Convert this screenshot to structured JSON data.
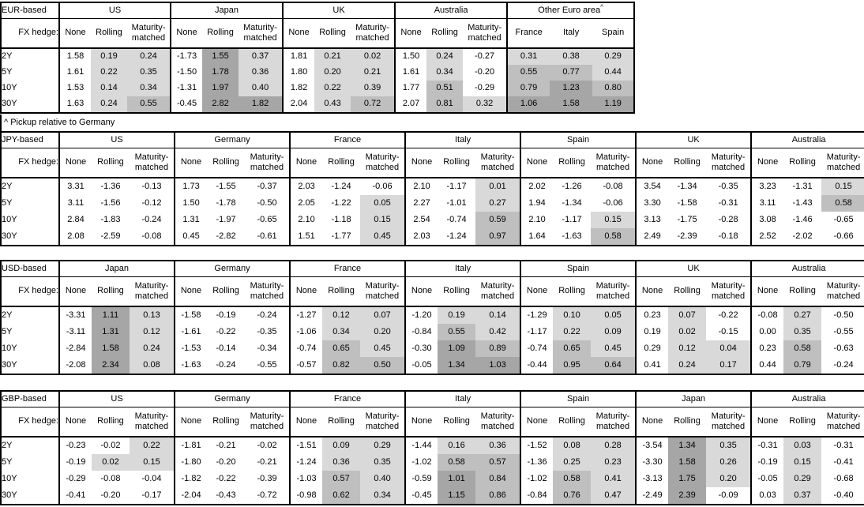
{
  "footnote": "^ Pickup relative to Germany",
  "fx_hedge_label": "FX hedge:",
  "tenors": [
    "2Y",
    "5Y",
    "10Y",
    "30Y"
  ],
  "hedge_columns": [
    "None",
    "Rolling",
    "Maturity-matched"
  ],
  "shading": {
    "negative": "#ffffff",
    "low": "#d9d9d9",
    "mid": "#bfbfbf",
    "high": "#a6a6a6",
    "thresholds": [
      0,
      0.5,
      1
    ]
  },
  "tables": [
    {
      "base": "EUR-based",
      "groups": [
        {
          "name": "US",
          "columns": [
            "None",
            "Rolling",
            "Maturity-matched"
          ],
          "shaded_columns": [
            1,
            2
          ],
          "values": [
            [
              "1.58",
              "0.19",
              "0.24"
            ],
            [
              "1.61",
              "0.22",
              "0.35"
            ],
            [
              "1.53",
              "0.14",
              "0.34"
            ],
            [
              "1.63",
              "0.24",
              "0.55"
            ]
          ]
        },
        {
          "name": "Japan",
          "columns": [
            "None",
            "Rolling",
            "Maturity-matched"
          ],
          "shaded_columns": [
            1,
            2
          ],
          "values": [
            [
              "-1.73",
              "1.55",
              "0.37"
            ],
            [
              "-1.50",
              "1.78",
              "0.36"
            ],
            [
              "-1.31",
              "1.97",
              "0.40"
            ],
            [
              "-0.45",
              "2.82",
              "1.82"
            ]
          ]
        },
        {
          "name": "UK",
          "columns": [
            "None",
            "Rolling",
            "Maturity-matched"
          ],
          "shaded_columns": [
            1,
            2
          ],
          "values": [
            [
              "1.81",
              "0.21",
              "0.02"
            ],
            [
              "1.80",
              "0.20",
              "0.21"
            ],
            [
              "1.82",
              "0.22",
              "0.39"
            ],
            [
              "2.04",
              "0.43",
              "0.72"
            ]
          ]
        },
        {
          "name": "Australia",
          "columns": [
            "None",
            "Rolling",
            "Maturity-matched"
          ],
          "shaded_columns": [
            1,
            2
          ],
          "values": [
            [
              "1.50",
              "0.24",
              "-0.27"
            ],
            [
              "1.61",
              "0.34",
              "-0.20"
            ],
            [
              "1.77",
              "0.51",
              "-0.29"
            ],
            [
              "2.07",
              "0.81",
              "0.32"
            ]
          ]
        },
        {
          "name": "Other Euro area",
          "superscript": "^",
          "columns": [
            "France",
            "Italy",
            "Spain"
          ],
          "shaded_columns": [
            0,
            1,
            2
          ],
          "values": [
            [
              "0.31",
              "0.38",
              "0.29"
            ],
            [
              "0.55",
              "0.77",
              "0.44"
            ],
            [
              "0.79",
              "1.23",
              "0.80"
            ],
            [
              "1.06",
              "1.58",
              "1.19"
            ]
          ]
        }
      ]
    },
    {
      "base": "JPY-based",
      "groups": [
        {
          "name": "US",
          "columns": [
            "None",
            "Rolling",
            "Maturity-matched"
          ],
          "shaded_columns": [
            1,
            2
          ],
          "values": [
            [
              "3.31",
              "-1.36",
              "-0.13"
            ],
            [
              "3.11",
              "-1.56",
              "-0.12"
            ],
            [
              "2.84",
              "-1.83",
              "-0.24"
            ],
            [
              "2.08",
              "-2.59",
              "-0.08"
            ]
          ]
        },
        {
          "name": "Germany",
          "columns": [
            "None",
            "Rolling",
            "Maturity-matched"
          ],
          "shaded_columns": [
            1,
            2
          ],
          "values": [
            [
              "1.73",
              "-1.55",
              "-0.37"
            ],
            [
              "1.50",
              "-1.78",
              "-0.50"
            ],
            [
              "1.31",
              "-1.97",
              "-0.65"
            ],
            [
              "0.45",
              "-2.82",
              "-0.61"
            ]
          ]
        },
        {
          "name": "France",
          "columns": [
            "None",
            "Rolling",
            "Maturity-matched"
          ],
          "shaded_columns": [
            1,
            2
          ],
          "values": [
            [
              "2.03",
              "-1.24",
              "-0.06"
            ],
            [
              "2.05",
              "-1.22",
              "0.05"
            ],
            [
              "2.10",
              "-1.18",
              "0.15"
            ],
            [
              "1.51",
              "-1.77",
              "0.45"
            ]
          ]
        },
        {
          "name": "Italy",
          "columns": [
            "None",
            "Rolling",
            "Maturity-matched"
          ],
          "shaded_columns": [
            1,
            2
          ],
          "values": [
            [
              "2.10",
              "-1.17",
              "0.01"
            ],
            [
              "2.27",
              "-1.01",
              "0.27"
            ],
            [
              "2.54",
              "-0.74",
              "0.59"
            ],
            [
              "2.03",
              "-1.24",
              "0.97"
            ]
          ]
        },
        {
          "name": "Spain",
          "columns": [
            "None",
            "Rolling",
            "Maturity-matched"
          ],
          "shaded_columns": [
            1,
            2
          ],
          "values": [
            [
              "2.02",
              "-1.26",
              "-0.08"
            ],
            [
              "1.94",
              "-1.34",
              "-0.06"
            ],
            [
              "2.10",
              "-1.17",
              "0.15"
            ],
            [
              "1.64",
              "-1.63",
              "0.58"
            ]
          ]
        },
        {
          "name": "UK",
          "columns": [
            "None",
            "Rolling",
            "Maturity-matched"
          ],
          "shaded_columns": [
            1,
            2
          ],
          "values": [
            [
              "3.54",
              "-1.34",
              "-0.35"
            ],
            [
              "3.30",
              "-1.58",
              "-0.31"
            ],
            [
              "3.13",
              "-1.75",
              "-0.28"
            ],
            [
              "2.49",
              "-2.39",
              "-0.18"
            ]
          ]
        },
        {
          "name": "Australia",
          "columns": [
            "None",
            "Rolling",
            "Maturity-matched"
          ],
          "shaded_columns": [
            1,
            2
          ],
          "values": [
            [
              "3.23",
              "-1.31",
              "0.15"
            ],
            [
              "3.11",
              "-1.43",
              "0.58"
            ],
            [
              "3.08",
              "-1.46",
              "-0.65"
            ],
            [
              "2.52",
              "-2.02",
              "-0.66"
            ]
          ]
        }
      ]
    },
    {
      "base": "USD-based",
      "groups": [
        {
          "name": "Japan",
          "columns": [
            "None",
            "Rolling",
            "Maturity-matched"
          ],
          "shaded_columns": [
            1,
            2
          ],
          "values": [
            [
              "-3.31",
              "1.11",
              "0.13"
            ],
            [
              "-3.11",
              "1.31",
              "0.12"
            ],
            [
              "-2.84",
              "1.58",
              "0.24"
            ],
            [
              "-2.08",
              "2.34",
              "0.08"
            ]
          ]
        },
        {
          "name": "Germany",
          "columns": [
            "None",
            "Rolling",
            "Maturity-matched"
          ],
          "shaded_columns": [
            1,
            2
          ],
          "values": [
            [
              "-1.58",
              "-0.19",
              "-0.24"
            ],
            [
              "-1.61",
              "-0.22",
              "-0.35"
            ],
            [
              "-1.53",
              "-0.14",
              "-0.34"
            ],
            [
              "-1.63",
              "-0.24",
              "-0.55"
            ]
          ]
        },
        {
          "name": "France",
          "columns": [
            "None",
            "Rolling",
            "Maturity-matched"
          ],
          "shaded_columns": [
            1,
            2
          ],
          "values": [
            [
              "-1.27",
              "0.12",
              "0.07"
            ],
            [
              "-1.06",
              "0.34",
              "0.20"
            ],
            [
              "-0.74",
              "0.65",
              "0.45"
            ],
            [
              "-0.57",
              "0.82",
              "0.50"
            ]
          ]
        },
        {
          "name": "Italy",
          "columns": [
            "None",
            "Rolling",
            "Maturity-matched"
          ],
          "shaded_columns": [
            1,
            2
          ],
          "values": [
            [
              "-1.20",
              "0.19",
              "0.14"
            ],
            [
              "-0.84",
              "0.55",
              "0.42"
            ],
            [
              "-0.30",
              "1.09",
              "0.89"
            ],
            [
              "-0.05",
              "1.34",
              "1.03"
            ]
          ]
        },
        {
          "name": "Spain",
          "columns": [
            "None",
            "Rolling",
            "Maturity-matched"
          ],
          "shaded_columns": [
            1,
            2
          ],
          "values": [
            [
              "-1.29",
              "0.10",
              "0.05"
            ],
            [
              "-1.17",
              "0.22",
              "0.09"
            ],
            [
              "-0.74",
              "0.65",
              "0.45"
            ],
            [
              "-0.44",
              "0.95",
              "0.64"
            ]
          ]
        },
        {
          "name": "UK",
          "columns": [
            "None",
            "Rolling",
            "Maturity-matched"
          ],
          "shaded_columns": [
            1,
            2
          ],
          "values": [
            [
              "0.23",
              "0.07",
              "-0.22"
            ],
            [
              "0.19",
              "0.02",
              "-0.15"
            ],
            [
              "0.29",
              "0.12",
              "0.04"
            ],
            [
              "0.41",
              "0.24",
              "0.17"
            ]
          ]
        },
        {
          "name": "Australia",
          "columns": [
            "None",
            "Rolling",
            "Maturity-matched"
          ],
          "shaded_columns": [
            1,
            2
          ],
          "values": [
            [
              "-0.08",
              "0.27",
              "-0.50"
            ],
            [
              "0.00",
              "0.35",
              "-0.55"
            ],
            [
              "0.23",
              "0.58",
              "-0.63"
            ],
            [
              "0.44",
              "0.79",
              "-0.24"
            ]
          ]
        }
      ]
    },
    {
      "base": "GBP-based",
      "groups": [
        {
          "name": "US",
          "columns": [
            "None",
            "Rolling",
            "Maturity-matched"
          ],
          "shaded_columns": [
            1,
            2
          ],
          "values": [
            [
              "-0.23",
              "-0.02",
              "0.22"
            ],
            [
              "-0.19",
              "0.02",
              "0.15"
            ],
            [
              "-0.29",
              "-0.08",
              "-0.04"
            ],
            [
              "-0.41",
              "-0.20",
              "-0.17"
            ]
          ]
        },
        {
          "name": "Germany",
          "columns": [
            "None",
            "Rolling",
            "Maturity-matched"
          ],
          "shaded_columns": [
            1,
            2
          ],
          "values": [
            [
              "-1.81",
              "-0.21",
              "-0.02"
            ],
            [
              "-1.80",
              "-0.20",
              "-0.21"
            ],
            [
              "-1.82",
              "-0.22",
              "-0.39"
            ],
            [
              "-2.04",
              "-0.43",
              "-0.72"
            ]
          ]
        },
        {
          "name": "France",
          "columns": [
            "None",
            "Rolling",
            "Maturity-matched"
          ],
          "shaded_columns": [
            1,
            2
          ],
          "values": [
            [
              "-1.51",
              "0.09",
              "0.29"
            ],
            [
              "-1.24",
              "0.36",
              "0.35"
            ],
            [
              "-1.03",
              "0.57",
              "0.40"
            ],
            [
              "-0.98",
              "0.62",
              "0.34"
            ]
          ]
        },
        {
          "name": "Italy",
          "columns": [
            "None",
            "Rolling",
            "Maturity-matched"
          ],
          "shaded_columns": [
            1,
            2
          ],
          "values": [
            [
              "-1.44",
              "0.16",
              "0.36"
            ],
            [
              "-1.02",
              "0.58",
              "0.57"
            ],
            [
              "-0.59",
              "1.01",
              "0.84"
            ],
            [
              "-0.45",
              "1.15",
              "0.86"
            ]
          ]
        },
        {
          "name": "Spain",
          "columns": [
            "None",
            "Rolling",
            "Maturity-matched"
          ],
          "shaded_columns": [
            1,
            2
          ],
          "values": [
            [
              "-1.52",
              "0.08",
              "0.28"
            ],
            [
              "-1.36",
              "0.25",
              "0.23"
            ],
            [
              "-1.02",
              "0.58",
              "0.41"
            ],
            [
              "-0.84",
              "0.76",
              "0.47"
            ]
          ]
        },
        {
          "name": "Japan",
          "columns": [
            "None",
            "Rolling",
            "Maturity-matched"
          ],
          "shaded_columns": [
            1,
            2
          ],
          "values": [
            [
              "-3.54",
              "1.34",
              "0.35"
            ],
            [
              "-3.30",
              "1.58",
              "0.26"
            ],
            [
              "-3.13",
              "1.75",
              "0.20"
            ],
            [
              "-2.49",
              "2.39",
              "-0.09"
            ]
          ]
        },
        {
          "name": "Australia",
          "columns": [
            "None",
            "Rolling",
            "Maturity-matched"
          ],
          "shaded_columns": [
            1,
            2
          ],
          "values": [
            [
              "-0.31",
              "0.03",
              "-0.31"
            ],
            [
              "-0.19",
              "0.15",
              "-0.41"
            ],
            [
              "-0.05",
              "0.29",
              "-0.68"
            ],
            [
              "0.03",
              "0.37",
              "-0.40"
            ]
          ]
        }
      ]
    }
  ]
}
